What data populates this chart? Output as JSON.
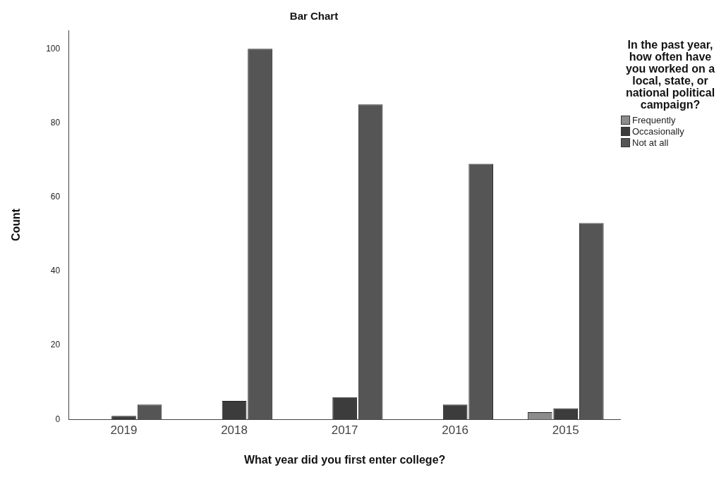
{
  "chart_data": {
    "type": "bar",
    "title": "Bar Chart",
    "xlabel": "What year did you first enter college?",
    "ylabel": "Count",
    "categories": [
      "2019",
      "2018",
      "2017",
      "2016",
      "2015"
    ],
    "series": [
      {
        "name": "Frequently",
        "color": "#8c8c8c",
        "values": [
          0,
          0,
          0,
          0,
          2
        ]
      },
      {
        "name": "Occasionally",
        "color": "#3c3c3c",
        "values": [
          1,
          5,
          6,
          4,
          3
        ]
      },
      {
        "name": "Not at all",
        "color": "#555555",
        "values": [
          4,
          100,
          85,
          69,
          53
        ]
      }
    ],
    "legend_title": "In the past year, how often have you worked on a local, state, or national political campaign?",
    "legend": "right",
    "grid": false,
    "ylim": [
      0,
      105
    ],
    "yticks": [
      0,
      20,
      40,
      60,
      80,
      100
    ]
  }
}
